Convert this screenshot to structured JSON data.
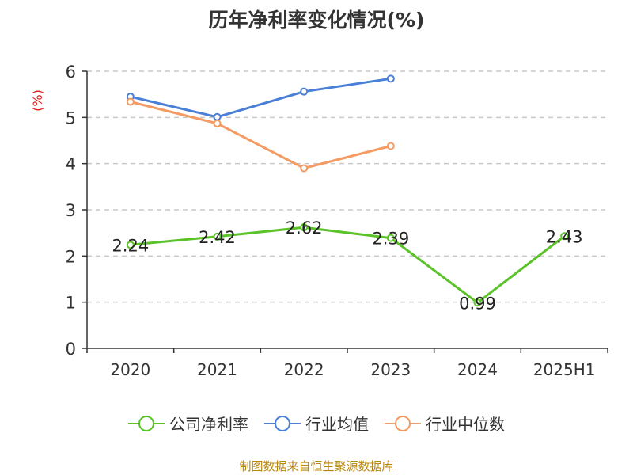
{
  "page_title": "历年净利率变化情况(%)",
  "source_text": "制图数据来自恒生聚源数据库",
  "chart_data": {
    "type": "line",
    "title": "历年净利率变化情况(%)",
    "ylabel": "(%)",
    "xlabel": "",
    "categories": [
      "2020",
      "2021",
      "2022",
      "2023",
      "2024",
      "2025H1"
    ],
    "ylim": [
      0,
      6
    ],
    "yticks": [
      0,
      1,
      2,
      3,
      4,
      5,
      6
    ],
    "grid": true,
    "legend_position": "bottom",
    "series": [
      {
        "name": "公司净利率",
        "color": "#5cc22a",
        "values": [
          2.24,
          2.42,
          2.62,
          2.39,
          0.99,
          2.43
        ],
        "data_labels": [
          "2.24",
          "2.42",
          "2.62",
          "2.39",
          "0.99",
          "2.43"
        ]
      },
      {
        "name": "行业均值",
        "color": "#4a7fd6",
        "values": [
          5.45,
          5.01,
          5.56,
          5.84,
          null,
          null
        ]
      },
      {
        "name": "行业中位数",
        "color": "#f49a63",
        "values": [
          5.34,
          4.87,
          3.9,
          4.38,
          null,
          null
        ]
      }
    ]
  }
}
